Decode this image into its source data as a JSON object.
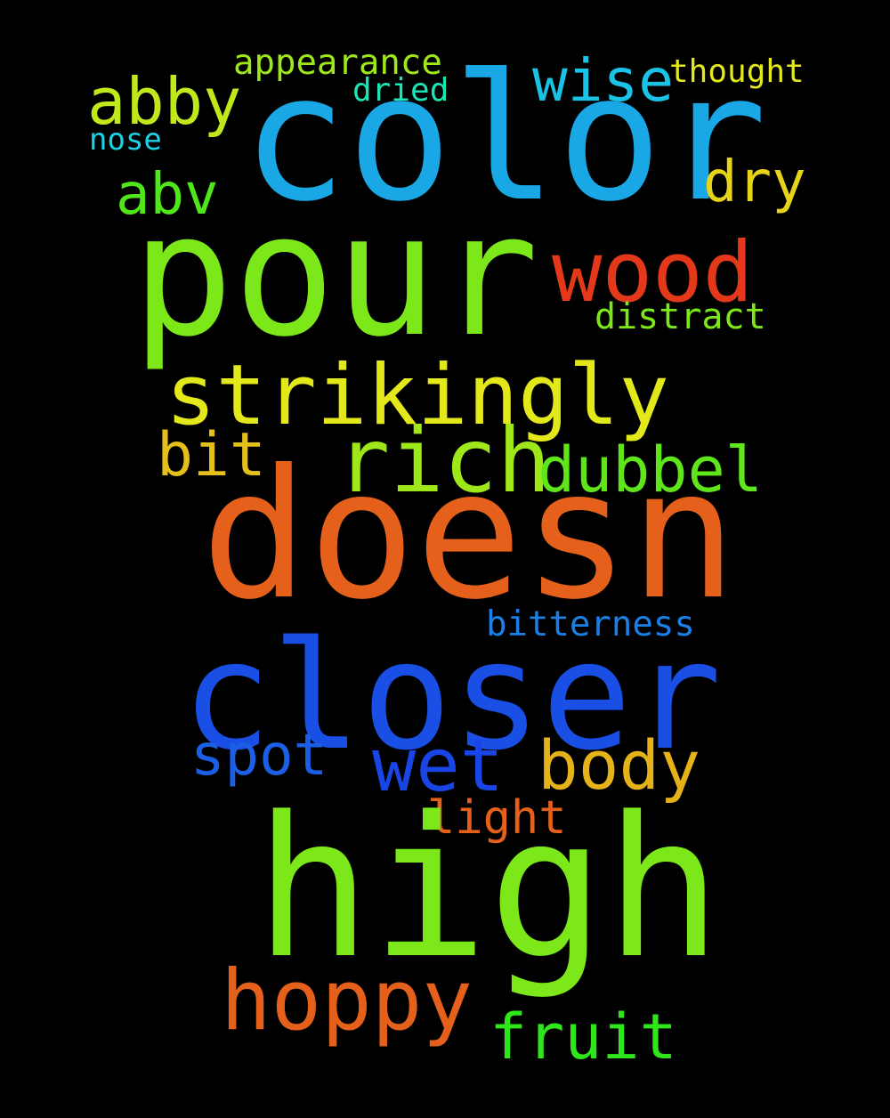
{
  "background_color": "#000000",
  "words": {
    "color": {
      "text": "color",
      "color": "#1aa7e6"
    },
    "pour": {
      "text": "pour",
      "color": "#7ce81a"
    },
    "doesn": {
      "text": "doesn",
      "color": "#e5601a"
    },
    "closer": {
      "text": "closer",
      "color": "#1a4fe6"
    },
    "high": {
      "text": "high",
      "color": "#7ce81a"
    },
    "strikingly": {
      "text": "strikingly",
      "color": "#e3e81a"
    },
    "rich": {
      "text": "rich",
      "color": "#9ee81a"
    },
    "wood": {
      "text": "wood",
      "color": "#e3391a"
    },
    "hoppy": {
      "text": "hoppy",
      "color": "#e5601a"
    },
    "abby": {
      "text": "abby",
      "color": "#c0e81a"
    },
    "wise": {
      "text": "wise",
      "color": "#1ac3e6"
    },
    "dry": {
      "text": "dry",
      "color": "#e6d41a"
    },
    "abv": {
      "text": "abv",
      "color": "#4fe61a"
    },
    "dubbel": {
      "text": "dubbel",
      "color": "#5ee61a"
    },
    "bit": {
      "text": "bit",
      "color": "#e6c01a"
    },
    "spot": {
      "text": "spot",
      "color": "#1a5fe6"
    },
    "wet": {
      "text": "wet",
      "color": "#1a45e6"
    },
    "body": {
      "text": "body",
      "color": "#e6b21a"
    },
    "fruit": {
      "text": "fruit",
      "color": "#2ee61a"
    },
    "light": {
      "text": "light",
      "color": "#e5601a"
    },
    "bitterness": {
      "text": "bitterness",
      "color": "#1a7fe6"
    },
    "distract": {
      "text": "distract",
      "color": "#7ce81a"
    },
    "appearance": {
      "text": "appearance",
      "color": "#9ee81a"
    },
    "dried": {
      "text": "dried",
      "color": "#1ae6b5"
    },
    "thought": {
      "text": "thought",
      "color": "#e3e81a"
    },
    "nose": {
      "text": "nose",
      "color": "#1ad1e6"
    }
  }
}
